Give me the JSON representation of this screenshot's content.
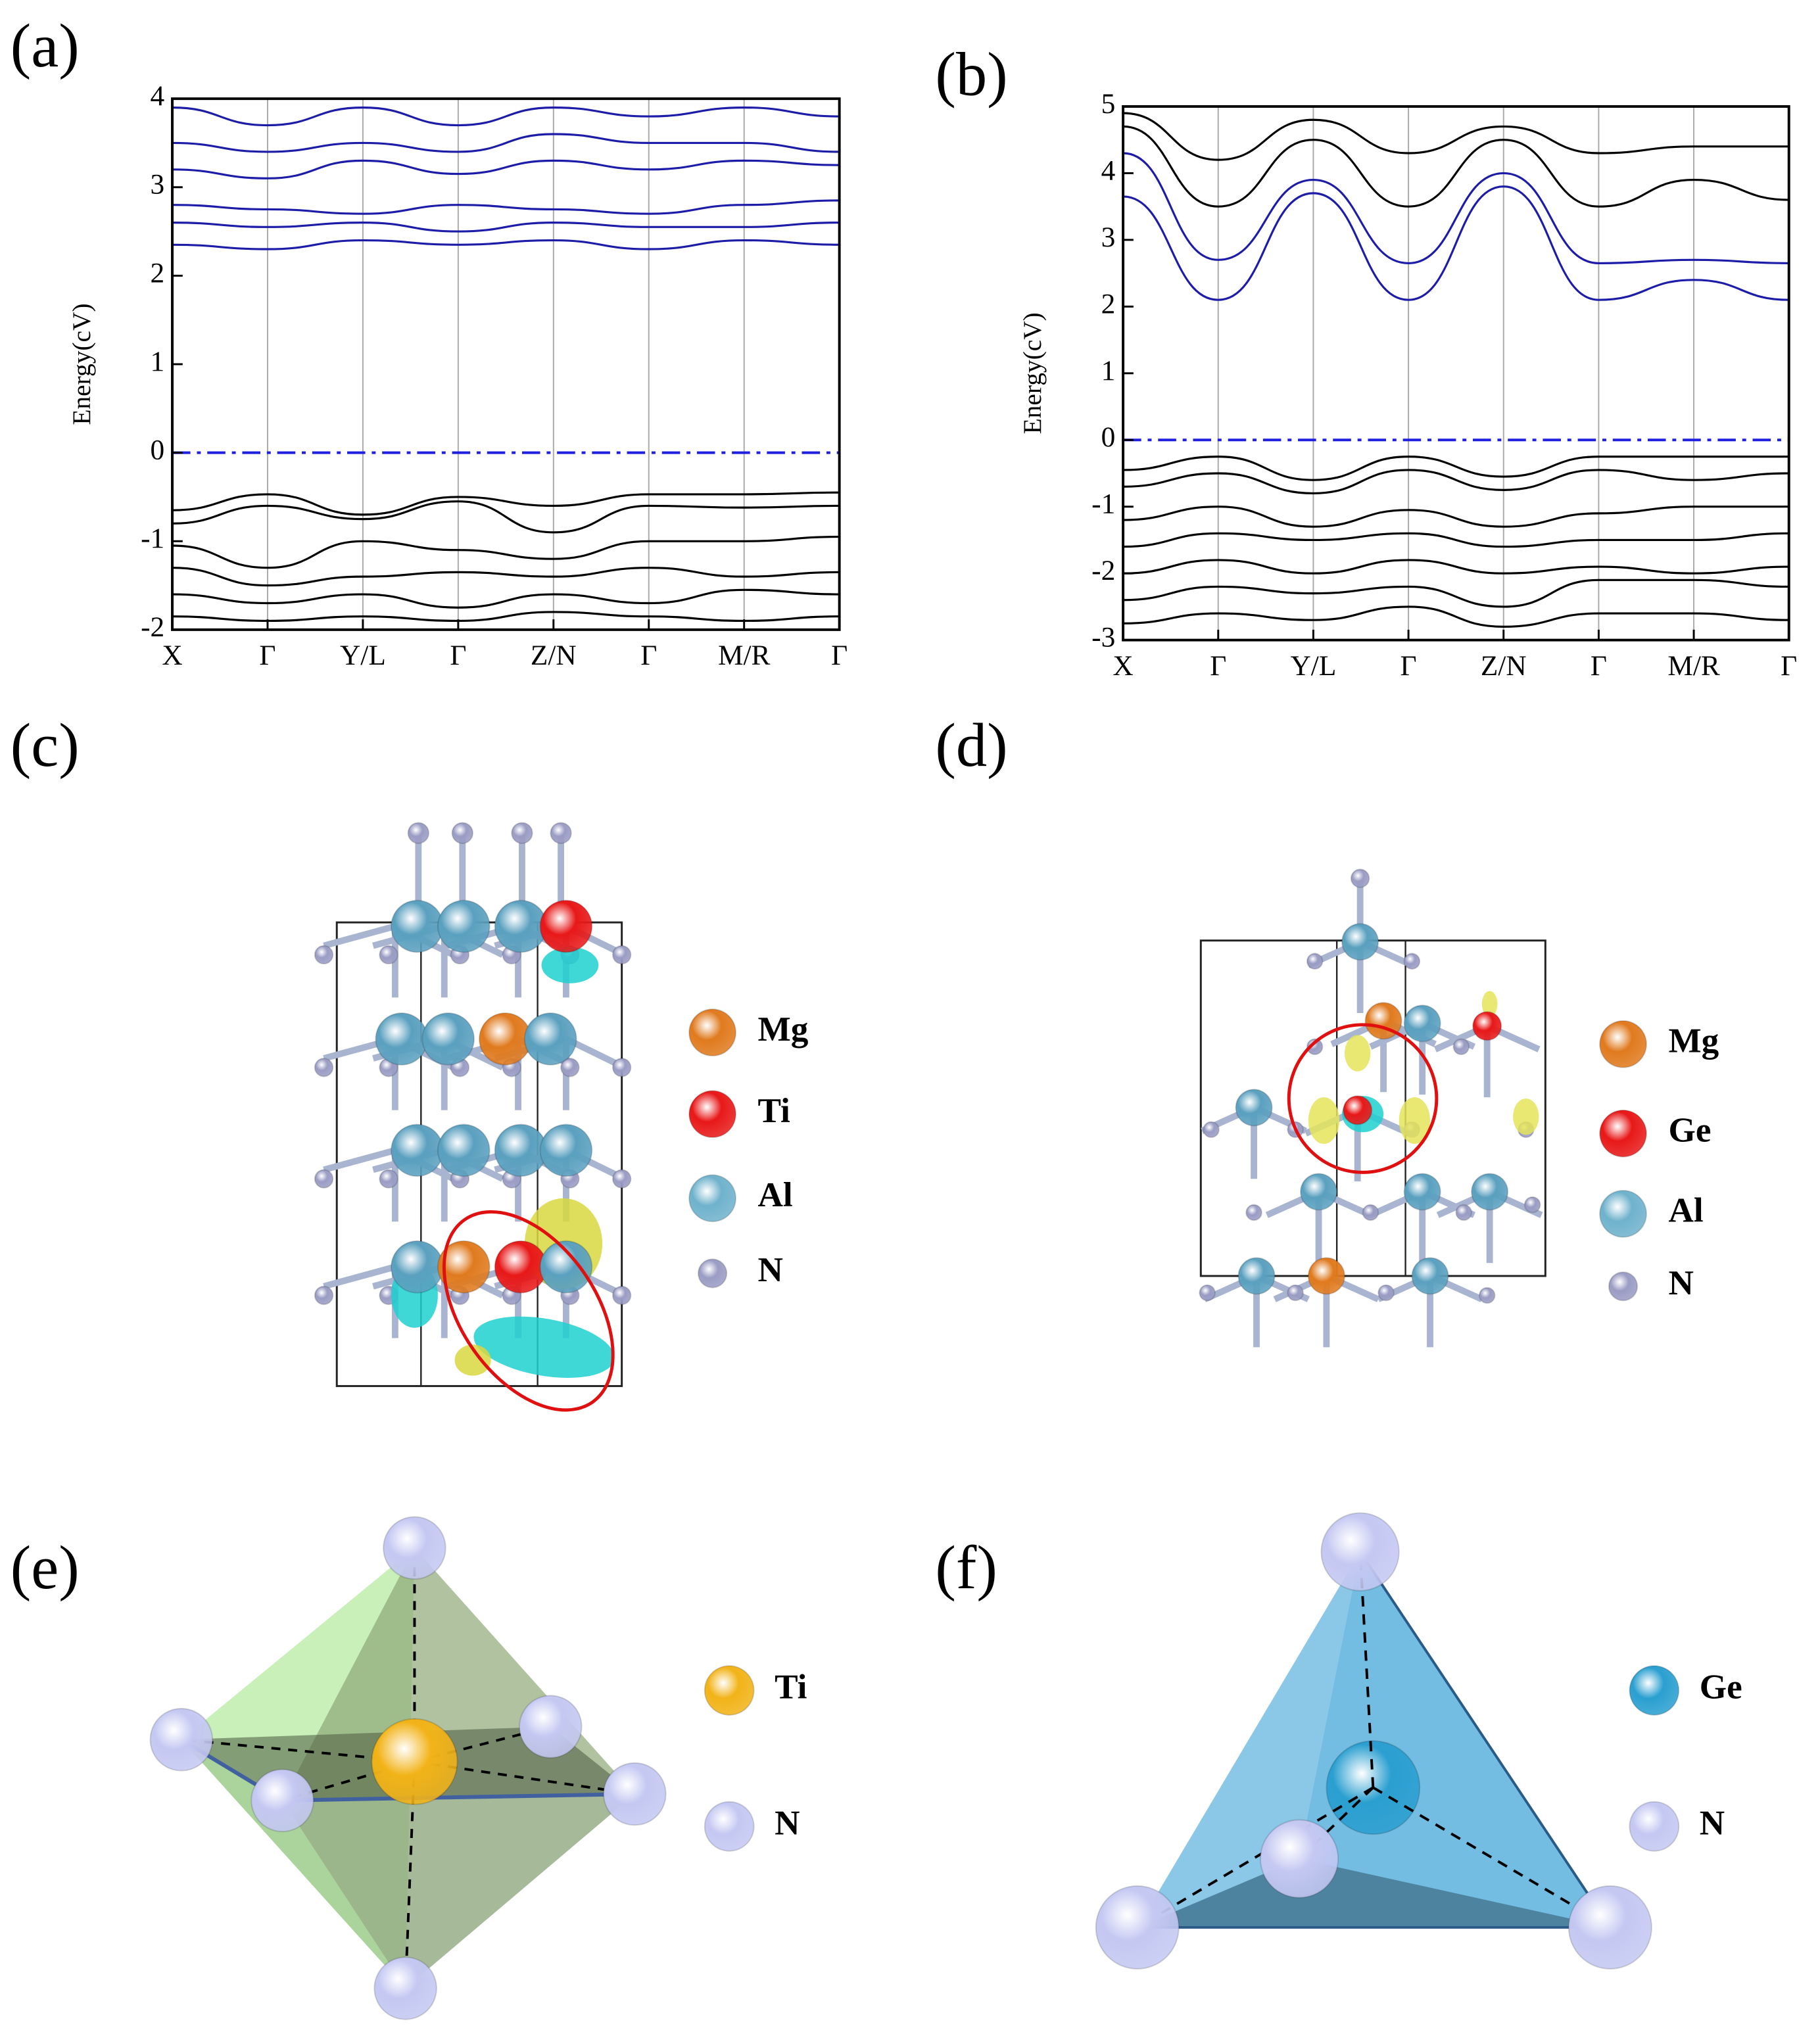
{
  "chart_data": [
    {
      "type": "line",
      "panel_label": "(a)",
      "y_label": "Energy(cV)",
      "categories": [
        "X",
        "Γ",
        "Y/L",
        "Γ",
        "Z/N",
        "Γ",
        "M/R",
        "Γ"
      ],
      "ylim": [
        -2,
        4
      ],
      "yticks": [
        -2,
        -1,
        0,
        1,
        2,
        3,
        4
      ],
      "grid": true,
      "reference_line": 0,
      "series": [
        {
          "color": "#1c1ca8",
          "values": [
            2.35,
            2.3,
            2.4,
            2.35,
            2.4,
            2.3,
            2.4,
            2.35
          ]
        },
        {
          "color": "#1c1ca8",
          "values": [
            2.6,
            2.55,
            2.6,
            2.5,
            2.6,
            2.55,
            2.55,
            2.6
          ]
        },
        {
          "color": "#1c1ca8",
          "values": [
            2.8,
            2.75,
            2.7,
            2.8,
            2.75,
            2.7,
            2.8,
            2.85
          ]
        },
        {
          "color": "#1c1ca8",
          "values": [
            3.2,
            3.1,
            3.3,
            3.15,
            3.3,
            3.2,
            3.3,
            3.25
          ]
        },
        {
          "color": "#1c1ca8",
          "values": [
            3.5,
            3.4,
            3.5,
            3.4,
            3.6,
            3.5,
            3.5,
            3.4
          ]
        },
        {
          "color": "#1c1ca8",
          "values": [
            3.9,
            3.7,
            3.9,
            3.7,
            3.9,
            3.8,
            3.9,
            3.8
          ]
        },
        {
          "color": "#000000",
          "values": [
            -0.65,
            -0.47,
            -0.7,
            -0.5,
            -0.6,
            -0.47,
            -0.47,
            -0.45
          ]
        },
        {
          "color": "#000000",
          "values": [
            -0.8,
            -0.6,
            -0.75,
            -0.55,
            -0.9,
            -0.6,
            -0.62,
            -0.6
          ]
        },
        {
          "color": "#000000",
          "values": [
            -1.05,
            -1.3,
            -1.0,
            -1.1,
            -1.2,
            -1.0,
            -1.0,
            -0.95
          ]
        },
        {
          "color": "#000000",
          "values": [
            -1.3,
            -1.5,
            -1.4,
            -1.35,
            -1.4,
            -1.3,
            -1.4,
            -1.35
          ]
        },
        {
          "color": "#000000",
          "values": [
            -1.6,
            -1.7,
            -1.6,
            -1.75,
            -1.6,
            -1.7,
            -1.55,
            -1.6
          ]
        },
        {
          "color": "#000000",
          "values": [
            -1.85,
            -1.9,
            -1.85,
            -1.9,
            -1.8,
            -1.85,
            -1.9,
            -1.85
          ]
        }
      ]
    },
    {
      "type": "line",
      "panel_label": "(b)",
      "y_label": "Energy(cV)",
      "categories": [
        "X",
        "Γ",
        "Y/L",
        "Γ",
        "Z/N",
        "Γ",
        "M/R",
        "Γ"
      ],
      "ylim": [
        -3,
        5
      ],
      "yticks": [
        -3,
        -2,
        -1,
        0,
        1,
        2,
        3,
        4,
        5
      ],
      "grid": true,
      "reference_line": 0,
      "series": [
        {
          "color": "#1c1ca8",
          "values": [
            3.65,
            2.1,
            3.7,
            2.1,
            3.8,
            2.1,
            2.4,
            2.1
          ]
        },
        {
          "color": "#1c1ca8",
          "values": [
            4.3,
            2.7,
            3.9,
            2.65,
            4.0,
            2.65,
            2.7,
            2.65
          ]
        },
        {
          "color": "#000000",
          "values": [
            4.7,
            3.5,
            4.5,
            3.5,
            4.5,
            3.5,
            3.9,
            3.6
          ]
        },
        {
          "color": "#000000",
          "values": [
            4.9,
            4.2,
            4.8,
            4.3,
            4.7,
            4.3,
            4.4,
            4.4
          ]
        },
        {
          "color": "#000000",
          "values": [
            -0.45,
            -0.25,
            -0.6,
            -0.25,
            -0.55,
            -0.25,
            -0.25,
            -0.25
          ]
        },
        {
          "color": "#000000",
          "values": [
            -0.7,
            -0.5,
            -0.8,
            -0.45,
            -0.75,
            -0.45,
            -0.6,
            -0.5
          ]
        },
        {
          "color": "#000000",
          "values": [
            -1.2,
            -1.0,
            -1.3,
            -1.05,
            -1.3,
            -1.1,
            -1.0,
            -1.0
          ]
        },
        {
          "color": "#000000",
          "values": [
            -1.6,
            -1.4,
            -1.5,
            -1.4,
            -1.6,
            -1.5,
            -1.5,
            -1.4
          ]
        },
        {
          "color": "#000000",
          "values": [
            -2.0,
            -1.8,
            -2.0,
            -1.8,
            -2.0,
            -1.9,
            -2.0,
            -1.9
          ]
        },
        {
          "color": "#000000",
          "values": [
            -2.4,
            -2.2,
            -2.3,
            -2.2,
            -2.5,
            -2.1,
            -2.1,
            -2.2
          ]
        },
        {
          "color": "#000000",
          "values": [
            -2.75,
            -2.6,
            -2.7,
            -2.5,
            -2.8,
            -2.6,
            -2.6,
            -2.7
          ]
        }
      ]
    }
  ],
  "structures": [
    {
      "panel_label": "(c)",
      "legend": [
        {
          "label": "Mg",
          "color": "#e07a1e"
        },
        {
          "label": "Ti",
          "color": "#e81818"
        },
        {
          "label": "Al",
          "color": "#6fb2cc"
        },
        {
          "label": "N",
          "color": "#9a9cc4"
        }
      ]
    },
    {
      "panel_label": "(d)",
      "legend": [
        {
          "label": "Mg",
          "color": "#e07a1e"
        },
        {
          "label": "Ge",
          "color": "#e81818"
        },
        {
          "label": "Al",
          "color": "#6fb2cc"
        },
        {
          "label": "N",
          "color": "#9a9cc4"
        }
      ]
    },
    {
      "panel_label": "(e)",
      "legend": [
        {
          "label": "Ti",
          "color": "#f2b318"
        },
        {
          "label": "N",
          "color": "#c4c8f2"
        }
      ]
    },
    {
      "panel_label": "(f)",
      "legend": [
        {
          "label": "Ge",
          "color": "#2a9fd0"
        },
        {
          "label": "N",
          "color": "#c4c8f2"
        }
      ]
    }
  ]
}
